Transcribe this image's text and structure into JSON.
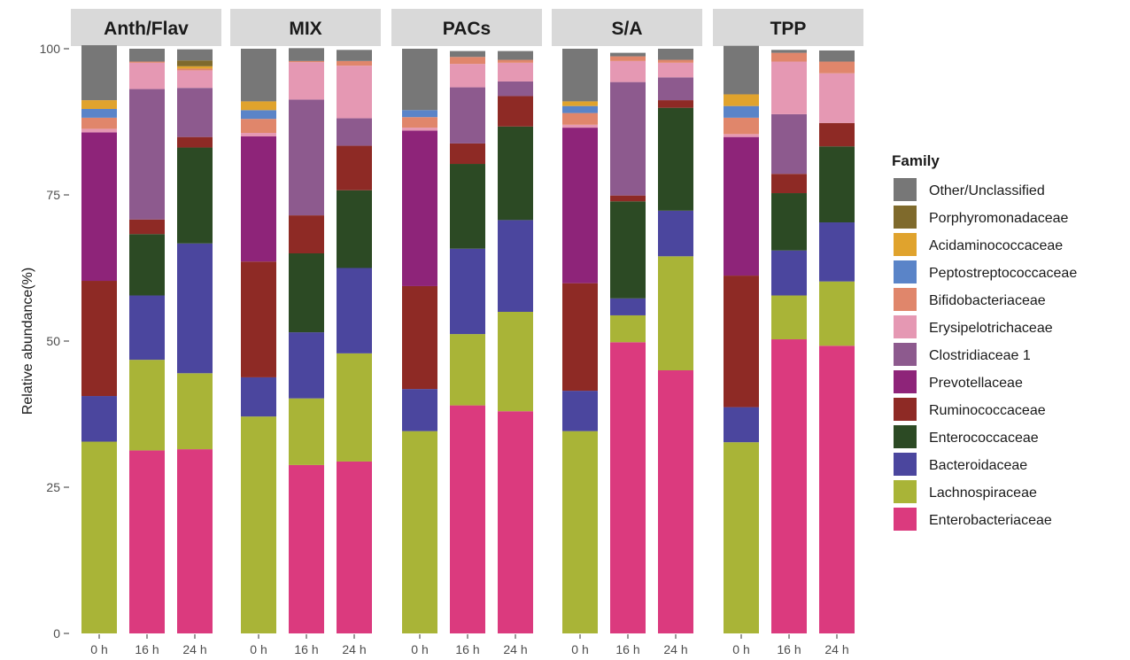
{
  "chart_data": {
    "type": "bar",
    "stacked": true,
    "ylabel": "Relative abundance(%)",
    "ylim": [
      0,
      100
    ],
    "yticks": [
      0,
      25,
      50,
      75,
      100
    ],
    "legend_title": "Family",
    "legend_position": "right",
    "panels": [
      {
        "name": "Anth/Flav",
        "categories": [
          "0 h",
          "16 h",
          "24 h"
        ]
      },
      {
        "name": "MIX",
        "categories": [
          "0 h",
          "16 h",
          "24 h"
        ]
      },
      {
        "name": "PACs",
        "categories": [
          "0 h",
          "16 h",
          "24 h"
        ]
      },
      {
        "name": "S/A",
        "categories": [
          "0 h",
          "16 h",
          "24 h"
        ]
      },
      {
        "name": "TPP",
        "categories": [
          "0 h",
          "16 h",
          "24 h"
        ]
      }
    ],
    "series": [
      {
        "name": "Enterobacteriaceae",
        "color": "#DB3A7E",
        "values": [
          [
            0,
            31.3,
            31.5
          ],
          [
            0,
            28.8,
            29.4
          ],
          [
            0,
            39.0,
            38.0
          ],
          [
            0,
            49.8,
            45.0
          ],
          [
            0,
            50.3,
            49.2
          ]
        ]
      },
      {
        "name": "Lachnospiraceae",
        "color": "#A9B437",
        "values": [
          [
            32.8,
            15.5,
            13.0
          ],
          [
            37.1,
            11.4,
            18.5
          ],
          [
            34.6,
            12.2,
            17.0
          ],
          [
            34.6,
            4.6,
            19.5
          ],
          [
            32.7,
            7.5,
            11.0
          ]
        ]
      },
      {
        "name": "Bacteroidaceae",
        "color": "#4B469E",
        "values": [
          [
            7.8,
            11.0,
            22.2
          ],
          [
            6.7,
            11.3,
            14.6
          ],
          [
            7.2,
            14.6,
            15.7
          ],
          [
            6.9,
            2.9,
            7.8
          ],
          [
            6.0,
            7.7,
            10.1
          ]
        ]
      },
      {
        "name": "Enterococcaceae",
        "color": "#2C4A24",
        "values": [
          [
            0,
            10.5,
            16.4
          ],
          [
            0,
            13.5,
            13.3
          ],
          [
            0,
            14.5,
            16.0
          ],
          [
            0,
            16.6,
            17.6
          ],
          [
            0,
            9.8,
            13.0
          ]
        ]
      },
      {
        "name": "Ruminococcaceae",
        "color": "#8E2A25",
        "values": [
          [
            19.7,
            2.5,
            1.8
          ],
          [
            19.8,
            6.5,
            7.6
          ],
          [
            17.6,
            3.5,
            5.2
          ],
          [
            18.4,
            1.0,
            1.3
          ],
          [
            22.5,
            3.3,
            4.0
          ]
        ]
      },
      {
        "name": "Prevotellaceae",
        "color": "#8E2479",
        "values": [
          [
            25.4,
            0,
            0
          ],
          [
            21.4,
            0,
            0
          ],
          [
            26.6,
            0,
            0
          ],
          [
            26.6,
            0,
            0
          ],
          [
            23.7,
            0,
            0
          ]
        ]
      },
      {
        "name": "Clostridiaceae 1",
        "color": "#8D5A8E",
        "values": [
          [
            0,
            22.3,
            8.4
          ],
          [
            0,
            19.8,
            4.7
          ],
          [
            0,
            9.6,
            2.5
          ],
          [
            0,
            19.4,
            3.9
          ],
          [
            0,
            10.2,
            0
          ]
        ]
      },
      {
        "name": "Erysipelotrichaceae",
        "color": "#E598B3",
        "values": [
          [
            0.6,
            4.5,
            3.0
          ],
          [
            0.6,
            6.4,
            9.0
          ],
          [
            0.5,
            4.0,
            3.2
          ],
          [
            0.5,
            3.6,
            2.5
          ],
          [
            0.5,
            9.0,
            8.5
          ]
        ]
      },
      {
        "name": "Bifidobacteriaceae",
        "color": "#E0866B",
        "values": [
          [
            1.9,
            0.2,
            0.3
          ],
          [
            2.4,
            0.2,
            0.8
          ],
          [
            1.8,
            1.2,
            0.5
          ],
          [
            2.0,
            0.8,
            0.5
          ],
          [
            2.8,
            1.5,
            2.0
          ]
        ]
      },
      {
        "name": "Peptostreptococcaceae",
        "color": "#5A84C8",
        "values": [
          [
            1.5,
            0,
            0
          ],
          [
            1.5,
            0,
            0
          ],
          [
            1.2,
            0,
            0
          ],
          [
            1.2,
            0,
            0
          ],
          [
            2.0,
            0,
            0
          ]
        ]
      },
      {
        "name": "Acidaminococcaceae",
        "color": "#E0A32D",
        "values": [
          [
            1.5,
            0,
            0.4
          ],
          [
            1.5,
            0,
            0
          ],
          [
            0,
            0,
            0
          ],
          [
            0.8,
            0,
            0
          ],
          [
            2.0,
            0,
            0
          ]
        ]
      },
      {
        "name": "Porphyromonadaceae",
        "color": "#7F6A2C",
        "values": [
          [
            0,
            0,
            1.0
          ],
          [
            0,
            0,
            0
          ],
          [
            0,
            0,
            0
          ],
          [
            0,
            0,
            0
          ],
          [
            0,
            0,
            0
          ]
        ]
      },
      {
        "name": "Other/Unclassified",
        "color": "#777777",
        "values": [
          [
            9.4,
            2.2,
            1.9
          ],
          [
            9.0,
            2.2,
            1.9
          ],
          [
            10.5,
            1.0,
            1.5
          ],
          [
            9.0,
            0.6,
            1.9
          ],
          [
            8.3,
            0.5,
            1.9
          ]
        ]
      }
    ]
  }
}
